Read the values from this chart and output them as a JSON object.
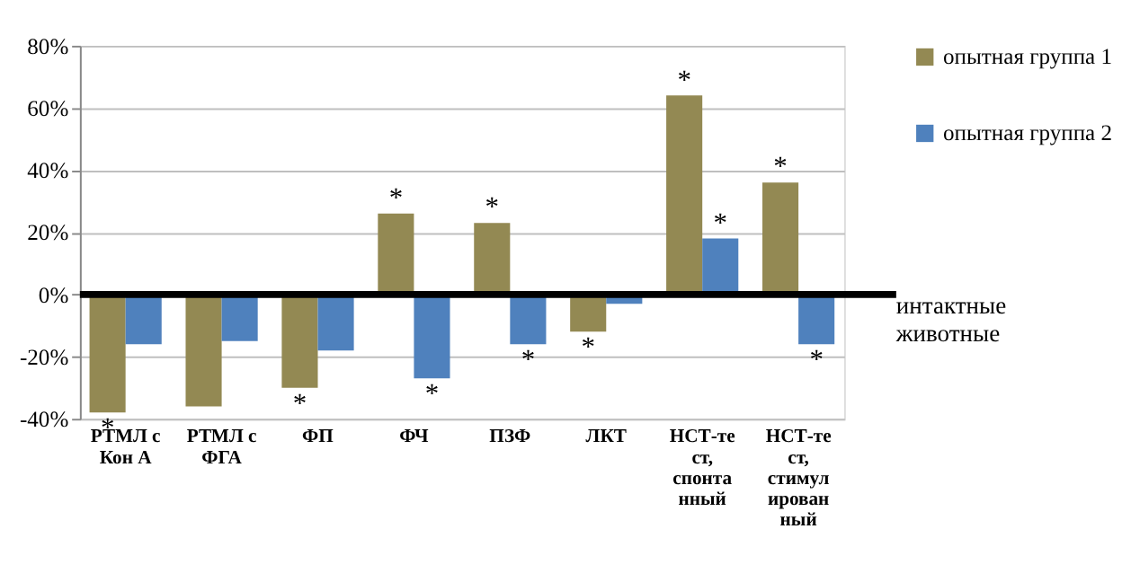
{
  "chart_data": {
    "type": "bar",
    "categories": [
      "РТМЛ с Кон А",
      "РТМЛ с ФГА",
      "ФП",
      "ФЧ",
      "ПЗФ",
      "ЛКТ",
      "НСТ-тест, спонтанный",
      "НСТ-тест, стимулированный"
    ],
    "series": [
      {
        "name": "опытная группа 1",
        "color": "#938953",
        "values": [
          -38,
          -36,
          -30,
          26,
          23,
          -12,
          64,
          36
        ]
      },
      {
        "name": "опытная группа 2",
        "color": "#4f81bd",
        "values": [
          -16,
          -15,
          -18,
          -27,
          -16,
          -3,
          18,
          -16
        ]
      }
    ],
    "ylim": [
      -40,
      80
    ],
    "yticks": [
      {
        "value": -40,
        "label": "-40%"
      },
      {
        "value": -20,
        "label": "-20%"
      },
      {
        "value": 0,
        "label": "0%"
      },
      {
        "value": 20,
        "label": "20%"
      },
      {
        "value": 40,
        "label": "40%"
      },
      {
        "value": 60,
        "label": "60%"
      },
      {
        "value": 80,
        "label": "80%"
      }
    ],
    "grid": "y",
    "legend": "right",
    "ref_lines": [
      {
        "axis": "y",
        "value": 0,
        "label": "интактные животные",
        "color": "#000000"
      }
    ],
    "annotations": [
      {
        "text": "*",
        "x": "РТМЛ с Кон А",
        "y": -38
      },
      {
        "text": "*",
        "x": "ФП",
        "y": -30
      },
      {
        "text": "*",
        "x": "ФЧ",
        "y": 26
      },
      {
        "text": "*",
        "x": "ФЧ",
        "y": -27
      },
      {
        "text": "*",
        "x": "ПЗФ",
        "y": 23
      },
      {
        "text": "*",
        "x": "ПЗФ",
        "y": -16
      },
      {
        "text": "*",
        "x": "ЛКТ",
        "y": -12
      },
      {
        "text": "*",
        "x": "НСТ-тест, спонтанный",
        "y": 64
      },
      {
        "text": "*",
        "x": "НСТ-тест, спонтанный",
        "y": 18
      },
      {
        "text": "*",
        "x": "НСТ-тест, стимулированный",
        "y": 36
      },
      {
        "text": "*",
        "x": "НСТ-тест, стимулированный",
        "y": -16
      }
    ]
  }
}
